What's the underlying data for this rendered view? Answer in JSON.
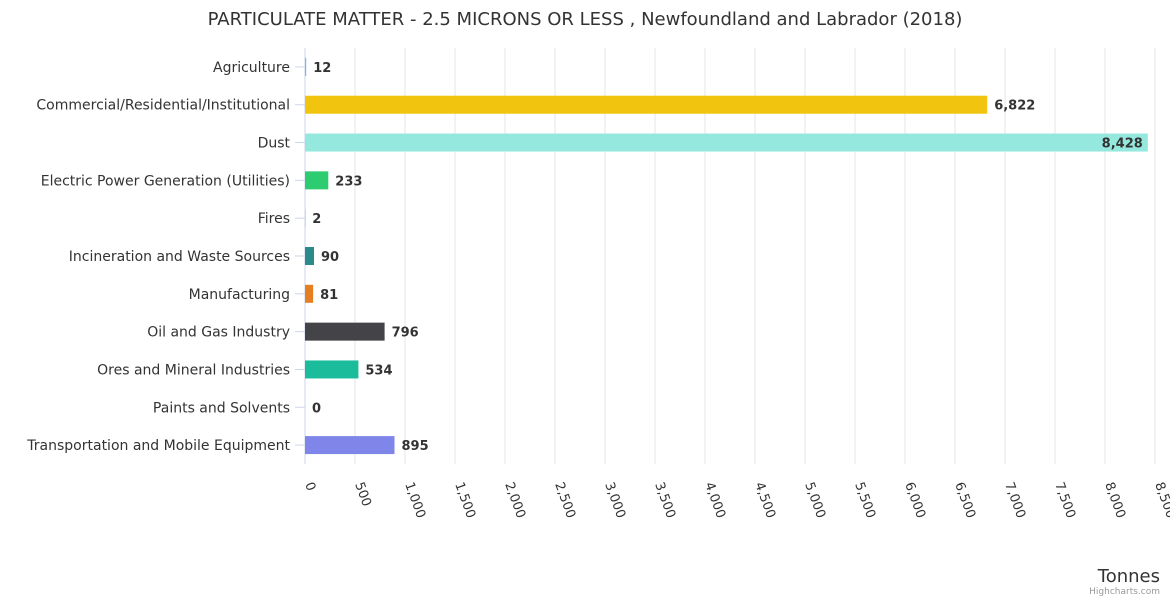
{
  "chart_data": {
    "type": "bar",
    "orientation": "horizontal",
    "title": "PARTICULATE MATTER - 2.5 MICRONS OR LESS , Newfoundland and Labrador (2018)",
    "xlabel": "Tonnes",
    "ylabel": "",
    "xlim": [
      0,
      8500
    ],
    "tick_values": [
      0,
      500,
      1000,
      1500,
      2000,
      2500,
      3000,
      3500,
      4000,
      4500,
      5000,
      5500,
      6000,
      6500,
      7000,
      7500,
      8000,
      8500
    ],
    "tick_labels": [
      "0",
      "500",
      "1,000",
      "1,500",
      "2,000",
      "2,500",
      "3,000",
      "3,500",
      "4,000",
      "4,500",
      "5,000",
      "5,500",
      "6,000",
      "6,500",
      "7,000",
      "7,500",
      "8,000",
      "8,500"
    ],
    "grid": true,
    "legend": "none",
    "categories": [
      "Agriculture",
      "Commercial/Residential/Institutional",
      "Dust",
      "Electric Power Generation (Utilities)",
      "Fires",
      "Incineration and Waste Sources",
      "Manufacturing",
      "Oil and Gas Industry",
      "Ores and Mineral Industries",
      "Paints and Solvents",
      "Transportation and Mobile Equipment"
    ],
    "values": [
      12,
      6822,
      8428,
      233,
      2,
      90,
      81,
      796,
      534,
      0,
      895
    ],
    "data_labels": [
      "12",
      "6,822",
      "8,428",
      "233",
      "2",
      "90",
      "81",
      "796",
      "534",
      "0",
      "895"
    ],
    "colors": [
      "#7cb5ec",
      "#f1c40f",
      "#95e8de",
      "#2ecc71",
      "#e74c3c",
      "#2a8b8b",
      "#e67e22",
      "#434348",
      "#1abc9c",
      "#9b59b6",
      "#8085e9"
    ]
  },
  "credits": "Highcharts.com"
}
